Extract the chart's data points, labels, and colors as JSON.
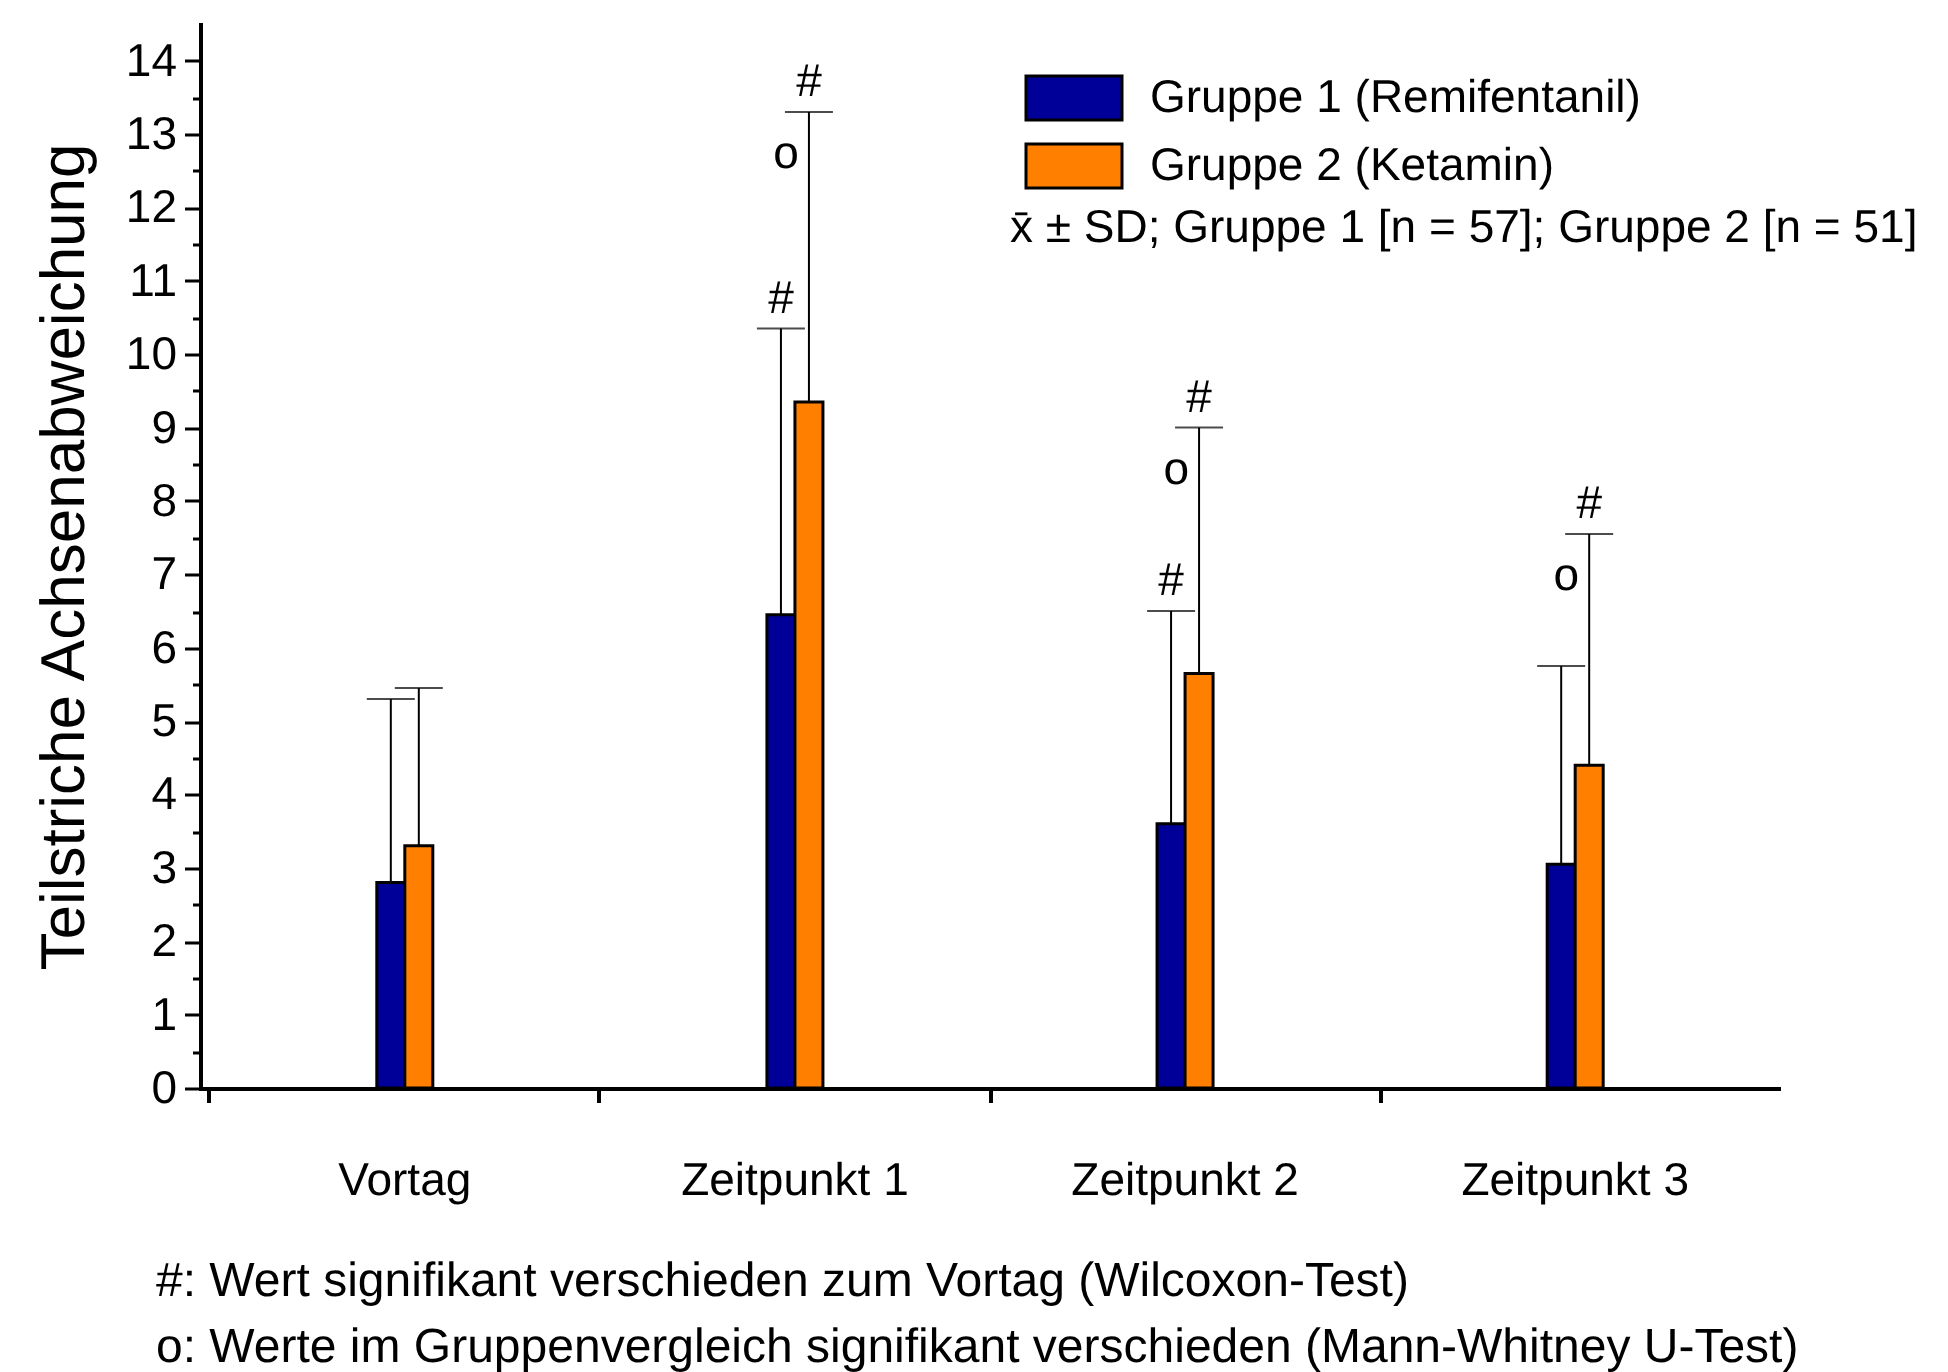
{
  "chart_data": {
    "type": "bar",
    "categories": [
      "Vortag",
      "Zeitpunkt 1",
      "Zeitpunkt 2",
      "Zeitpunkt 3"
    ],
    "series": [
      {
        "name": "Gruppe 1 (Remifentanil)",
        "color": "#000099",
        "values": [
          2.8,
          6.45,
          3.6,
          3.05
        ],
        "errors": [
          [
            2.8,
            5.3
          ],
          [
            6.45,
            10.35
          ],
          [
            3.6,
            6.5
          ],
          [
            3.05,
            5.75
          ]
        ]
      },
      {
        "name": "Gruppe 2 (Ketamin)",
        "color": "#ff8000",
        "values": [
          3.3,
          9.35,
          5.65,
          4.4
        ],
        "errors": [
          [
            3.3,
            5.45
          ],
          [
            9.35,
            13.3
          ],
          [
            5.65,
            9.0
          ],
          [
            4.4,
            7.55
          ]
        ]
      }
    ],
    "ylabel": "Teilstriche Achsenabweichung",
    "ylim": [
      0,
      14.5
    ],
    "yticks": [
      0,
      {
        "value": 0.5,
        "label": null
      },
      1,
      {
        "value": 1.5,
        "label": null
      },
      2,
      {
        "value": 2.5,
        "label": null
      },
      3,
      {
        "value": 3.5,
        "label": null
      },
      4,
      {
        "value": 4.5,
        "label": null
      },
      5,
      {
        "value": 5.5,
        "label": null
      },
      6,
      {
        "value": 6.5,
        "label": null
      },
      7,
      {
        "value": 7.5,
        "label": null
      },
      8,
      {
        "value": 8.5,
        "label": null
      },
      9,
      {
        "value": 9.5,
        "label": null
      },
      10,
      {
        "value": 10.5,
        "label": null
      },
      11,
      {
        "value": 11.5,
        "label": null
      },
      12,
      {
        "value": 12.5,
        "label": null
      },
      13,
      {
        "value": 13.5,
        "label": null
      },
      14
    ],
    "legend": "top right",
    "annotations": [
      "x̄ ± SD; Gruppe 1 [n = 57]; Gruppe 2 [n = 51]",
      "#: Wert signifikant verschieden zum Vortag (Wilcoxon-Test)",
      "o: Werte im Gruppenvergleich signifikant verschieden (Mann-Whitney U-Test)",
      {
        "text": "#",
        "x": "Zeitpunkt 1",
        "y": 10.35
      },
      {
        "text": "#",
        "x": "Zeitpunkt 1",
        "y": 13.3
      },
      {
        "text": "o",
        "x": "Zeitpunkt 1",
        "y": 13.3
      },
      {
        "text": "#",
        "x": "Zeitpunkt 2",
        "y": 6.5
      },
      {
        "text": "#",
        "x": "Zeitpunkt 2",
        "y": 9.0
      },
      {
        "text": "o",
        "x": "Zeitpunkt 2",
        "y": 9.0
      },
      {
        "text": "#",
        "x": "Zeitpunkt 3",
        "y": 7.55
      },
      {
        "text": "o",
        "x": "Zeitpunkt 3",
        "y": 7.55
      }
    ]
  }
}
